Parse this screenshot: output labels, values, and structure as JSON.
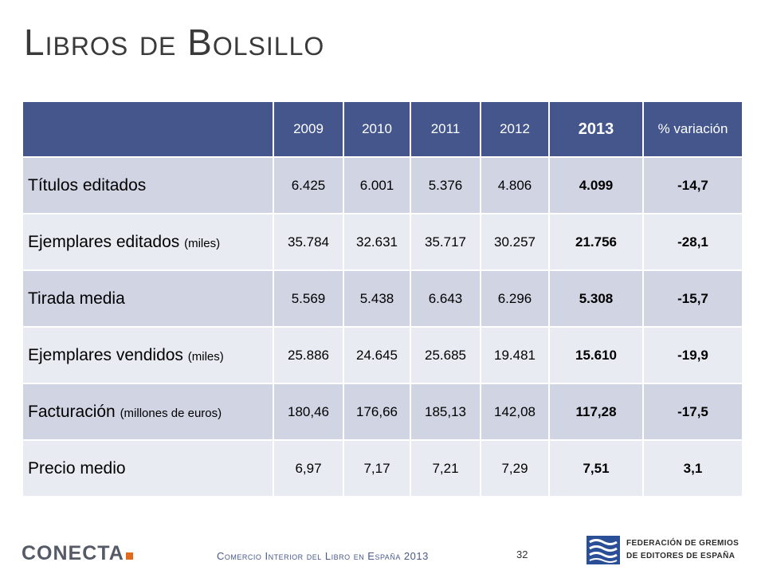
{
  "page": {
    "title": "Libros de Bolsillo"
  },
  "table": {
    "headers": [
      "",
      "2009",
      "2010",
      "2011",
      "2012",
      "2013",
      "% variación"
    ],
    "rows": [
      {
        "label": "Títulos editados",
        "unit": "",
        "values": [
          "6.425",
          "6.001",
          "5.376",
          "4.806",
          "4.099",
          "-14,7"
        ]
      },
      {
        "label": "Ejemplares editados ",
        "unit": "(miles)",
        "values": [
          "35.784",
          "32.631",
          "35.717",
          "30.257",
          "21.756",
          "-28,1"
        ]
      },
      {
        "label": "Tirada media",
        "unit": "",
        "values": [
          "5.569",
          "5.438",
          "6.643",
          "6.296",
          "5.308",
          "-15,7"
        ]
      },
      {
        "label": "Ejemplares vendidos ",
        "unit": "(miles)",
        "values": [
          "25.886",
          "24.645",
          "25.685",
          "19.481",
          "15.610",
          "-19,9"
        ]
      },
      {
        "label": "Facturación ",
        "unit": "(millones de euros)",
        "values": [
          "180,46",
          "176,66",
          "185,13",
          "142,08",
          "117,28",
          "-17,5"
        ]
      },
      {
        "label": "Precio medio",
        "unit": "",
        "values": [
          "6,97",
          "7,17",
          "7,21",
          "7,29",
          "7,51",
          "3,1"
        ]
      }
    ]
  },
  "footer": {
    "logo_text": "CONECTA",
    "caption": "Comercio Interior del Libro en España 2013",
    "page_number": "32",
    "federation_line1": "FEDERACIÓN DE GREMIOS",
    "federation_line2": "DE EDITORES DE ESPAÑA"
  },
  "colors": {
    "header_bg": "#44568c",
    "row_dark": "#d0d4e3",
    "row_light": "#e9ebf2",
    "accent_orange": "#e06a1b",
    "footer_blue": "#4a5a8a"
  },
  "icons": [
    "federation-logo-icon"
  ]
}
